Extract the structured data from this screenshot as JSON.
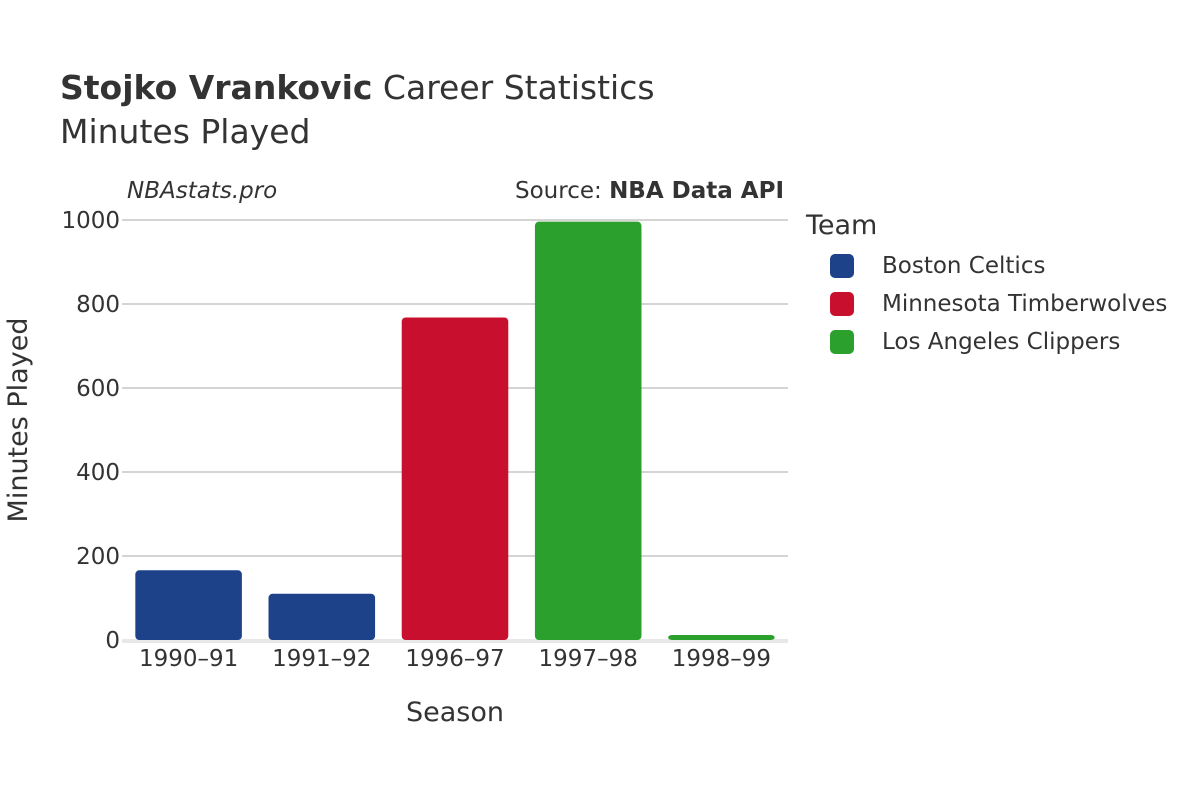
{
  "header": {
    "title_bold": "Stojko Vrankovic",
    "title_rest": " Career Statistics",
    "subtitle": "Minutes Played",
    "site": "NBAstats.pro",
    "source_prefix": "Source: ",
    "source_name": "NBA Data API"
  },
  "legend": {
    "title": "Team",
    "items": [
      {
        "label": "Boston Celtics",
        "color": "#1d428a"
      },
      {
        "label": "Minnesota Timberwolves",
        "color": "#c8102e"
      },
      {
        "label": "Los Angeles Clippers",
        "color": "#2ca02c"
      }
    ]
  },
  "chart_data": {
    "type": "bar",
    "title": "Minutes Played",
    "xlabel": "Season",
    "ylabel": "Minutes Played",
    "ylim": [
      0,
      1000
    ],
    "yticks": [
      0,
      200,
      400,
      600,
      800,
      1000
    ],
    "grid": true,
    "legend_position": "right",
    "categories": [
      "1990–91",
      "1991–92",
      "1996–97",
      "1997–98",
      "1998–99"
    ],
    "values": [
      166,
      110,
      768,
      996,
      12
    ],
    "teams": [
      "Boston Celtics",
      "Boston Celtics",
      "Minnesota Timberwolves",
      "Los Angeles Clippers",
      "Los Angeles Clippers"
    ]
  }
}
